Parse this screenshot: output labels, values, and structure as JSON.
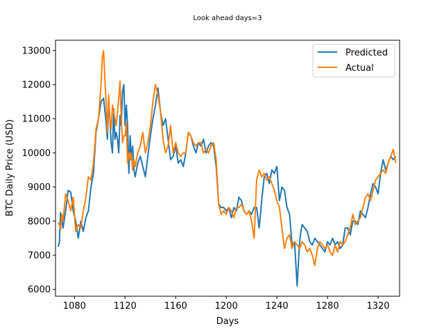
{
  "chart_data": {
    "type": "line",
    "title": "Look ahead days=3",
    "xlabel": "Days",
    "ylabel": "BTC Daily Price (USD)",
    "xlim": [
      1065,
      1337
    ],
    "ylim": [
      5800,
      13300
    ],
    "xticks": [
      1080,
      1120,
      1160,
      1200,
      1240,
      1280,
      1320
    ],
    "yticks": [
      6000,
      7000,
      8000,
      9000,
      10000,
      11000,
      12000,
      13000
    ],
    "grid": false,
    "legend_position": "top-right",
    "series": [
      {
        "name": "Predicted",
        "color": "#1f77b4",
        "x": [
          1067,
          1068,
          1069,
          1070,
          1071,
          1073,
          1075,
          1077,
          1079,
          1081,
          1083,
          1085,
          1087,
          1089,
          1091,
          1093,
          1095,
          1097,
          1099,
          1101,
          1103,
          1105,
          1106,
          1107,
          1108,
          1109,
          1110,
          1111,
          1112,
          1113,
          1114,
          1115,
          1116,
          1117,
          1118,
          1119,
          1120,
          1121,
          1122,
          1123,
          1124,
          1125,
          1126,
          1127,
          1128,
          1130,
          1132,
          1134,
          1136,
          1138,
          1140,
          1142,
          1144,
          1146,
          1148,
          1150,
          1152,
          1154,
          1156,
          1158,
          1160,
          1162,
          1164,
          1166,
          1168,
          1170,
          1172,
          1174,
          1176,
          1178,
          1180,
          1182,
          1184,
          1186,
          1188,
          1190,
          1192,
          1194,
          1196,
          1198,
          1200,
          1202,
          1204,
          1206,
          1208,
          1210,
          1212,
          1214,
          1216,
          1218,
          1220,
          1222,
          1224,
          1226,
          1228,
          1230,
          1232,
          1234,
          1236,
          1238,
          1240,
          1242,
          1244,
          1246,
          1248,
          1250,
          1252,
          1254,
          1256,
          1258,
          1259,
          1260,
          1262,
          1264,
          1266,
          1268,
          1270,
          1272,
          1274,
          1276,
          1278,
          1280,
          1282,
          1284,
          1286,
          1288,
          1290,
          1292,
          1294,
          1296,
          1298,
          1300,
          1302,
          1304,
          1306,
          1308,
          1310,
          1312,
          1314,
          1316,
          1318,
          1320,
          1322,
          1324,
          1326,
          1328,
          1330,
          1332,
          1334
        ],
        "y": [
          7250,
          7350,
          8250,
          8000,
          7800,
          8300,
          8900,
          8850,
          8300,
          8000,
          7500,
          8000,
          7700,
          8100,
          8300,
          9000,
          9400,
          10600,
          11000,
          11500,
          11600,
          10900,
          10400,
          11400,
          11000,
          10300,
          10000,
          11300,
          10400,
          10600,
          10400,
          10000,
          11100,
          10800,
          11800,
          12000,
          10800,
          11400,
          10800,
          9400,
          10500,
          9800,
          10200,
          9500,
          9300,
          9700,
          9900,
          9600,
          9300,
          9900,
          10500,
          11000,
          11400,
          11900,
          11200,
          10800,
          11000,
          10400,
          9800,
          9900,
          10200,
          9700,
          9800,
          9600,
          10000,
          10600,
          10500,
          10200,
          10000,
          10300,
          10200,
          10400,
          10000,
          10200,
          10300,
          10200,
          9600,
          8500,
          8400,
          8400,
          8300,
          8400,
          8100,
          8400,
          8300,
          8700,
          8600,
          8300,
          8200,
          8300,
          8200,
          8400,
          8400,
          7800,
          8600,
          9300,
          9400,
          9100,
          9500,
          9400,
          9600,
          8600,
          9000,
          8900,
          8400,
          8200,
          7300,
          7400,
          6100,
          7400,
          7700,
          7900,
          7800,
          7700,
          7400,
          7300,
          7500,
          7400,
          7300,
          7200,
          7100,
          7400,
          7300,
          7500,
          7300,
          7400,
          7200,
          7300,
          7800,
          7800,
          7600,
          8000,
          8000,
          7900,
          8300,
          8200,
          8100,
          8400,
          8800,
          9100,
          9000,
          8800,
          9400,
          9800,
          9500,
          9700,
          9900,
          9800,
          9900
        ]
      },
      {
        "name": "Actual",
        "color": "#ff7f0e",
        "x": [
          1067,
          1068,
          1069,
          1070,
          1071,
          1073,
          1075,
          1077,
          1079,
          1081,
          1083,
          1085,
          1087,
          1089,
          1091,
          1093,
          1095,
          1097,
          1099,
          1101,
          1102,
          1103,
          1104,
          1105,
          1106,
          1107,
          1108,
          1109,
          1110,
          1111,
          1112,
          1113,
          1114,
          1115,
          1116,
          1117,
          1118,
          1119,
          1120,
          1121,
          1122,
          1123,
          1124,
          1125,
          1126,
          1127,
          1128,
          1130,
          1132,
          1134,
          1136,
          1138,
          1140,
          1142,
          1144,
          1146,
          1148,
          1150,
          1152,
          1154,
          1156,
          1158,
          1160,
          1162,
          1164,
          1166,
          1168,
          1170,
          1172,
          1174,
          1176,
          1178,
          1180,
          1182,
          1184,
          1186,
          1188,
          1190,
          1192,
          1194,
          1196,
          1198,
          1200,
          1202,
          1204,
          1206,
          1208,
          1210,
          1212,
          1214,
          1216,
          1218,
          1220,
          1222,
          1224,
          1226,
          1228,
          1230,
          1232,
          1234,
          1236,
          1238,
          1240,
          1242,
          1244,
          1246,
          1248,
          1250,
          1252,
          1254,
          1256,
          1258,
          1260,
          1262,
          1264,
          1266,
          1268,
          1270,
          1272,
          1274,
          1276,
          1278,
          1280,
          1282,
          1284,
          1286,
          1288,
          1290,
          1292,
          1294,
          1296,
          1298,
          1300,
          1302,
          1304,
          1306,
          1308,
          1310,
          1312,
          1314,
          1316,
          1318,
          1320,
          1322,
          1324,
          1326,
          1328,
          1330,
          1332,
          1334
        ],
        "y": [
          7950,
          7900,
          7750,
          8200,
          8000,
          8800,
          8600,
          8300,
          8700,
          7700,
          7900,
          7800,
          8300,
          8700,
          9300,
          9200,
          9700,
          10700,
          11000,
          12000,
          12800,
          13000,
          12200,
          11500,
          10600,
          11700,
          11000,
          10700,
          11400,
          11200,
          11000,
          10800,
          11200,
          11600,
          12100,
          11000,
          10300,
          10500,
          10500,
          10900,
          9700,
          10000,
          9800,
          10000,
          9500,
          9800,
          9600,
          10000,
          10200,
          10600,
          10000,
          10300,
          10800,
          11500,
          12000,
          11700,
          11200,
          10400,
          10000,
          10200,
          10800,
          10000,
          10300,
          10000,
          9900,
          10000,
          10000,
          10600,
          10500,
          10300,
          10200,
          10300,
          10300,
          10000,
          10100,
          10000,
          10200,
          10300,
          9800,
          8500,
          8200,
          8300,
          8200,
          8400,
          8300,
          8100,
          8400,
          8400,
          8500,
          8300,
          8200,
          8300,
          8000,
          7500,
          9200,
          9500,
          9300,
          9400,
          9200,
          9300,
          9100,
          8900,
          8600,
          8400,
          7800,
          7200,
          7500,
          7600,
          7200,
          7400,
          7300,
          7200,
          7400,
          7300,
          7100,
          7200,
          7000,
          6700,
          7200,
          7400,
          7300,
          7200,
          7300,
          7100,
          7000,
          7300,
          7100,
          7400,
          7300,
          7400,
          7600,
          7800,
          8200,
          7900,
          8000,
          8100,
          8400,
          8700,
          8800,
          8600,
          8900,
          9200,
          9300,
          9400,
          9500,
          9400,
          9700,
          9900,
          10100,
          9700
        ]
      }
    ]
  }
}
